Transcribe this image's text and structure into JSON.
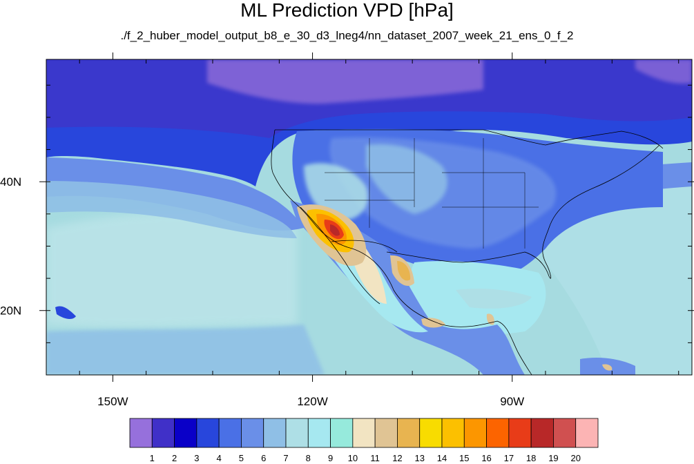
{
  "header": {
    "title": "ML Prediction VPD [hPa]",
    "subtitle": "./f_2_huber_model_output_b8_e_30_d3_lneg4/nn_dataset_2007_week_21_ens_0_f_2"
  },
  "map": {
    "lon_range": [
      -160,
      -63
    ],
    "lat_range": [
      10,
      59
    ],
    "ocean_base_color": "#a6dbe0",
    "x_ticks": [
      {
        "lon": -150,
        "label": "150W"
      },
      {
        "lon": -120,
        "label": "120W"
      },
      {
        "lon": -90,
        "label": "90W"
      }
    ],
    "y_ticks": [
      {
        "lat": 40,
        "label": "40N"
      },
      {
        "lat": 20,
        "label": "20N"
      }
    ]
  },
  "colorbar": {
    "colors": [
      "#9670dc",
      "#4030c8",
      "#0a00c8",
      "#2846dc",
      "#4a70e6",
      "#6a8fe8",
      "#8fbfe6",
      "#aedfe6",
      "#a6e8f0",
      "#96eadc",
      "#f2e4c2",
      "#e0c494",
      "#e8b450",
      "#f8dc00",
      "#fcc000",
      "#fc9600",
      "#fc6400",
      "#e83c18",
      "#b82828",
      "#d05050",
      "#fcb4b4"
    ],
    "labels": [
      "1",
      "2",
      "3",
      "4",
      "5",
      "6",
      "7",
      "8",
      "9",
      "10",
      "11",
      "12",
      "13",
      "14",
      "15",
      "16",
      "17",
      "18",
      "19",
      "20"
    ]
  }
}
